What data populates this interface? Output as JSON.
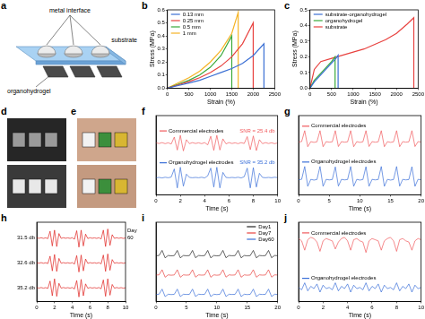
{
  "diagram": {
    "panel": "a",
    "labels": {
      "metal_interface": "metal interface",
      "substrate": "substrate",
      "organohydrogel": "organohydrogel"
    }
  },
  "photos": [
    {
      "panel": "d"
    },
    {
      "panel": "e"
    }
  ],
  "chart_data": [
    {
      "panel": "b",
      "type": "line",
      "x_label": "Strain (%)",
      "y_label": "Stress (MPa)",
      "xlim": [
        0,
        2500
      ],
      "xticks": [
        0,
        500,
        1000,
        1500,
        2000,
        2500
      ],
      "ylim": [
        0,
        0.6
      ],
      "yticks": [
        {
          "value": 0,
          "label": "0.0"
        },
        0.1,
        0.2,
        0.3,
        0.4,
        0.5,
        0.6
      ],
      "grid": false,
      "legend": "upper left",
      "series": [
        {
          "name": "0.13 mm",
          "color": "#3b6fd4",
          "x": [
            0,
            250,
            500,
            750,
            1000,
            1250,
            1500,
            1750,
            2000,
            2250,
            2250
          ],
          "values": [
            0,
            0.02,
            0.04,
            0.06,
            0.09,
            0.12,
            0.15,
            0.19,
            0.25,
            0.34,
            0
          ]
        },
        {
          "name": "0.25 mm",
          "color": "#e8423f",
          "x": [
            0,
            250,
            500,
            750,
            1000,
            1250,
            1500,
            1750,
            2000,
            2000
          ],
          "values": [
            0,
            0.025,
            0.05,
            0.08,
            0.12,
            0.17,
            0.24,
            0.34,
            0.5,
            0
          ]
        },
        {
          "name": "0.5 mm",
          "color": "#3aa93a",
          "x": [
            0,
            250,
            500,
            750,
            1000,
            1250,
            1500,
            1500
          ],
          "values": [
            0,
            0.03,
            0.06,
            0.1,
            0.16,
            0.25,
            0.4,
            0
          ]
        },
        {
          "name": "1 mm",
          "color": "#f5b324",
          "x": [
            0,
            250,
            500,
            750,
            1000,
            1250,
            1500,
            1650,
            1650
          ],
          "values": [
            0,
            0.04,
            0.08,
            0.13,
            0.2,
            0.29,
            0.42,
            0.58,
            0
          ]
        }
      ]
    },
    {
      "panel": "c",
      "type": "line",
      "x_label": "Strain (%)",
      "y_label": "Stress (MPa)",
      "xlim": [
        0,
        2500
      ],
      "xticks": [
        0,
        500,
        1000,
        1500,
        2000,
        2500
      ],
      "ylim": [
        0,
        0.5
      ],
      "yticks": [
        {
          "value": 0,
          "label": "0.0"
        },
        0.1,
        0.2,
        0.3,
        0.4,
        0.5
      ],
      "grid": false,
      "legend": "upper left",
      "series": [
        {
          "name": "substrate-organohydrogel",
          "color": "#3b6fd4",
          "x": [
            0,
            100,
            200,
            300,
            400,
            500,
            600,
            650,
            650
          ],
          "values": [
            0,
            0.04,
            0.07,
            0.1,
            0.13,
            0.16,
            0.19,
            0.21,
            0
          ]
        },
        {
          "name": "organohydrogel",
          "color": "#3aa93a",
          "x": [
            0,
            100,
            200,
            300,
            400,
            500,
            580,
            580
          ],
          "values": [
            0,
            0.05,
            0.08,
            0.11,
            0.14,
            0.17,
            0.2,
            0
          ]
        },
        {
          "name": "substrate",
          "color": "#e8423f",
          "x": [
            0,
            100,
            250,
            500,
            750,
            1000,
            1250,
            1500,
            1750,
            2000,
            2250,
            2400,
            2400
          ],
          "values": [
            0,
            0.12,
            0.17,
            0.19,
            0.21,
            0.23,
            0.25,
            0.28,
            0.31,
            0.35,
            0.41,
            0.45,
            0
          ]
        }
      ]
    },
    {
      "panel": "f",
      "type": "line",
      "x_label": "Time (s)",
      "xlim": [
        0,
        10
      ],
      "xticks": [
        0,
        2,
        4,
        6,
        8,
        10
      ],
      "ylim": [
        -2,
        2.6
      ],
      "yticks": [],
      "tick_labels": "x",
      "grid": false,
      "legend": "inline",
      "x": [
        0,
        0.25,
        0.5,
        0.75,
        1,
        1.25,
        1.5,
        1.75,
        2,
        2.25,
        2.5,
        2.75,
        3,
        3.25,
        3.5,
        3.75,
        4,
        4.25,
        4.5,
        4.75,
        5,
        5.25,
        5.5,
        5.75,
        6,
        6.25,
        6.5,
        6.75,
        7,
        7.25,
        7.5,
        7.75,
        8,
        8.25,
        8.5,
        8.75,
        9,
        9.25,
        9.5,
        9.75,
        10
      ],
      "series": [
        {
          "name": "Commercial electrodes",
          "color": "#f0595c",
          "annotation": "SNR = 25.4 db",
          "values": [
            1.02,
            0.98,
            1.03,
            0.97,
            1.02,
            0.95,
            1.35,
            0.6,
            1.45,
            0.55,
            1.2,
            0.97,
            1.03,
            0.98,
            1.02,
            0.97,
            1.03,
            0.9,
            1.4,
            0.58,
            1.45,
            0.6,
            1.25,
            0.96,
            1.03,
            0.98,
            1.02,
            0.97,
            1.03,
            0.98,
            1.38,
            0.62,
            1.42,
            0.57,
            1.2,
            0.97,
            1.03,
            0.98,
            1.02,
            0.97,
            1.01
          ]
        },
        {
          "name": "Organohydrogel electrodes",
          "color": "#3a6fd8",
          "annotation": "SNR = 35.2 db",
          "values": [
            -1.01,
            -0.99,
            -1.02,
            -0.98,
            -1.01,
            -0.97,
            -0.5,
            -1.6,
            -0.4,
            -1.5,
            -0.8,
            -0.99,
            -1.01,
            -0.99,
            -1.01,
            -0.98,
            -1.02,
            -0.9,
            -0.45,
            -1.55,
            -0.4,
            -1.6,
            -0.7,
            -0.99,
            -1.01,
            -0.99,
            -1.01,
            -0.98,
            -1.02,
            -0.95,
            -0.45,
            -1.6,
            -0.42,
            -1.55,
            -0.75,
            -0.99,
            -1.01,
            -0.99,
            -1.01,
            -0.98,
            -1.0
          ]
        }
      ]
    },
    {
      "panel": "g",
      "type": "line",
      "x_label": "Time (s)",
      "xlim": [
        0,
        20
      ],
      "xticks": [
        0,
        5,
        10,
        15,
        20
      ],
      "ylim": [
        -1.8,
        2.4
      ],
      "yticks": [],
      "tick_labels": "x",
      "grid": false,
      "legend": "inline",
      "x": [
        0,
        0.5,
        1,
        1.5,
        2,
        2.5,
        3,
        3.5,
        4,
        4.5,
        5,
        5.5,
        6,
        6.5,
        7,
        7.5,
        8,
        8.5,
        9,
        9.5,
        10,
        10.5,
        11,
        11.5,
        12,
        12.5,
        13,
        13.5,
        14,
        14.5,
        15,
        15.5,
        16,
        16.5,
        17,
        17.5,
        18,
        18.5,
        19,
        19.5,
        20
      ],
      "series": [
        {
          "name": "Commercial electrodes",
          "color": "#f0595c",
          "values": [
            1.0,
            1.02,
            1.6,
            0.75,
            1.02,
            0.98,
            1.01,
            1.6,
            0.75,
            1.02,
            0.99,
            1.01,
            1.6,
            0.76,
            1.02,
            0.99,
            1.01,
            1.6,
            0.75,
            1.02,
            0.98,
            1.01,
            1.6,
            0.76,
            1.02,
            0.99,
            1.01,
            1.6,
            0.75,
            1.02,
            0.98,
            1.01,
            1.6,
            0.75,
            1.02,
            0.99,
            1.01,
            1.6,
            0.76,
            1.02,
            1.0
          ]
        },
        {
          "name": "Organohydrogel electrodes",
          "color": "#3a6fd8",
          "values": [
            -1.0,
            -0.98,
            -0.3,
            -1.35,
            -0.98,
            -1.02,
            -0.99,
            -0.3,
            -1.35,
            -0.98,
            -1.01,
            -0.99,
            -0.32,
            -1.34,
            -0.98,
            -1.01,
            -0.99,
            -0.3,
            -1.35,
            -0.98,
            -1.02,
            -0.99,
            -0.31,
            -1.35,
            -0.98,
            -1.01,
            -0.99,
            -0.3,
            -1.35,
            -0.98,
            -1.02,
            -0.99,
            -0.3,
            -1.34,
            -0.98,
            -1.01,
            -0.99,
            -0.31,
            -1.35,
            -0.98,
            -1.0
          ]
        }
      ]
    },
    {
      "panel": "h",
      "type": "line",
      "x_label": "Time (s)",
      "xlim": [
        0,
        10
      ],
      "xticks": [
        0,
        2,
        4,
        6,
        8,
        10
      ],
      "ylim": [
        -1.2,
        5.8
      ],
      "yticks": [],
      "tick_labels": "x",
      "grid": false,
      "legend": "left",
      "depth_label": "Day",
      "x": [
        0,
        0.25,
        0.5,
        0.75,
        1,
        1.25,
        1.5,
        1.75,
        2,
        2.25,
        2.5,
        2.75,
        3,
        3.25,
        3.5,
        3.75,
        4,
        4.25,
        4.5,
        4.75,
        5,
        5.25,
        5.5,
        5.75,
        6,
        6.25,
        6.5,
        6.75,
        7,
        7.25,
        7.5,
        7.75,
        8,
        8.25,
        8.5,
        8.75,
        9,
        9.25,
        9.5,
        9.75,
        10
      ],
      "series": [
        {
          "name": "31.5 db",
          "color": "#e0201c",
          "day": 60,
          "values": [
            4.42,
            4.38,
            4.43,
            4.37,
            4.42,
            4.35,
            5.0,
            3.7,
            5.1,
            3.65,
            4.8,
            4.37,
            4.43,
            4.38,
            4.42,
            4.37,
            4.43,
            4.3,
            5.05,
            3.6,
            5.1,
            3.7,
            4.75,
            4.36,
            4.43,
            4.38,
            4.42,
            4.37,
            4.43,
            4.32,
            5.1,
            3.65,
            5.2,
            3.75,
            4.7,
            4.37,
            4.43,
            4.38,
            4.42,
            4.37,
            4.41
          ]
        },
        {
          "name": "32.6 db",
          "color": "#e0201c",
          "values": [
            2.22,
            2.18,
            2.23,
            2.17,
            2.22,
            2.15,
            2.8,
            1.5,
            2.95,
            1.45,
            2.6,
            2.17,
            2.23,
            2.18,
            2.22,
            2.17,
            2.23,
            2.1,
            2.85,
            1.4,
            2.9,
            1.5,
            2.55,
            2.16,
            2.23,
            2.18,
            2.22,
            2.17,
            2.23,
            2.12,
            2.9,
            1.45,
            3.0,
            1.55,
            2.5,
            2.17,
            2.23,
            2.18,
            2.22,
            2.17,
            2.21
          ]
        },
        {
          "name": "35.2 db",
          "color": "#e0201c",
          "values": [
            0.02,
            -0.02,
            0.03,
            -0.03,
            0.02,
            -0.05,
            0.6,
            -0.7,
            0.8,
            -0.75,
            0.4,
            -0.03,
            0.03,
            -0.02,
            0.02,
            -0.03,
            0.03,
            -0.1,
            0.65,
            -0.8,
            0.75,
            -0.7,
            0.35,
            -0.04,
            0.03,
            -0.02,
            0.02,
            -0.03,
            0.03,
            -0.08,
            0.7,
            -0.75,
            0.8,
            -0.65,
            0.3,
            -0.03,
            0.03,
            -0.02,
            0.02,
            -0.03,
            0.01
          ]
        }
      ]
    },
    {
      "panel": "i",
      "type": "line",
      "x_label": "Time (s)",
      "xlim": [
        0,
        20
      ],
      "xticks": [
        0,
        5,
        10,
        15,
        20
      ],
      "ylim": [
        -3,
        6
      ],
      "yticks": [],
      "tick_labels": "x",
      "grid": false,
      "legend": "upper right",
      "x": [
        0,
        0.5,
        1,
        1.5,
        2,
        2.5,
        3,
        3.5,
        4,
        4.5,
        5,
        5.5,
        6,
        6.5,
        7,
        7.5,
        8,
        8.5,
        9,
        9.5,
        10,
        10.5,
        11,
        11.5,
        12,
        12.5,
        13,
        13.5,
        14,
        14.5,
        15,
        15.5,
        16,
        16.5,
        17,
        17.5,
        18,
        18.5,
        19,
        19.5,
        20
      ],
      "series": [
        {
          "name": "Day1",
          "color": "#222222",
          "values": [
            2.2,
            2.22,
            2.8,
            1.95,
            2.22,
            2.18,
            2.21,
            2.8,
            1.95,
            2.22,
            2.19,
            2.21,
            2.8,
            1.96,
            2.22,
            2.19,
            2.21,
            2.8,
            1.95,
            2.22,
            2.18,
            2.21,
            2.8,
            1.96,
            2.22,
            2.19,
            2.21,
            2.8,
            1.95,
            2.22,
            2.18,
            2.21,
            2.8,
            1.95,
            2.22,
            2.19,
            2.21,
            2.8,
            1.96,
            2.22,
            2.2
          ]
        },
        {
          "name": "Day7",
          "color": "#e8423f",
          "values": [
            0.0,
            0.02,
            0.6,
            -0.25,
            0.02,
            -0.02,
            0.01,
            0.6,
            -0.25,
            0.02,
            -0.01,
            0.01,
            0.6,
            -0.24,
            0.02,
            -0.01,
            0.01,
            0.6,
            -0.25,
            0.02,
            -0.02,
            0.01,
            0.6,
            -0.24,
            0.02,
            -0.01,
            0.01,
            0.6,
            -0.25,
            0.02,
            -0.02,
            0.01,
            0.6,
            -0.25,
            0.02,
            -0.01,
            0.01,
            0.6,
            -0.24,
            0.02,
            0.0
          ]
        },
        {
          "name": "Day60",
          "color": "#3a6fd8",
          "values": [
            -2.2,
            -2.18,
            -1.6,
            -2.45,
            -2.18,
            -2.22,
            -2.19,
            -1.6,
            -2.45,
            -2.18,
            -2.21,
            -2.19,
            -1.6,
            -2.44,
            -2.18,
            -2.21,
            -2.19,
            -1.6,
            -2.45,
            -2.18,
            -2.22,
            -2.19,
            -1.6,
            -2.44,
            -2.18,
            -2.21,
            -2.19,
            -1.6,
            -2.45,
            -2.18,
            -2.22,
            -2.19,
            -1.6,
            -2.45,
            -2.18,
            -2.21,
            -2.19,
            -1.6,
            -2.44,
            -2.18,
            -2.2
          ]
        }
      ]
    },
    {
      "panel": "j",
      "type": "line",
      "x_label": "Time (s)",
      "xlim": [
        0,
        10
      ],
      "xticks": [
        0,
        2,
        4,
        6,
        8,
        10
      ],
      "ylim": [
        -1.6,
        1.8
      ],
      "yticks": [],
      "tick_labels": "x",
      "grid": false,
      "legend": "inline",
      "x": [
        0,
        0.25,
        0.5,
        0.75,
        1,
        1.25,
        1.5,
        1.75,
        2,
        2.25,
        2.5,
        2.75,
        3,
        3.25,
        3.5,
        3.75,
        4,
        4.25,
        4.5,
        4.75,
        5,
        5.25,
        5.5,
        5.75,
        6,
        6.25,
        6.5,
        6.75,
        7,
        7.25,
        7.5,
        7.75,
        8,
        8.25,
        8.5,
        8.75,
        9,
        9.25,
        9.5,
        9.75,
        10
      ],
      "series": [
        {
          "name": "Commercial electrodes",
          "color": "#f0595c",
          "values": [
            1.1,
            1.0,
            0.6,
            1.05,
            1.15,
            1.1,
            0.95,
            0.55,
            1.0,
            1.1,
            1.05,
            1.0,
            0.65,
            0.95,
            1.1,
            1.15,
            1.0,
            0.6,
            1.05,
            1.1,
            1.0,
            0.95,
            0.5,
            1.0,
            1.1,
            1.05,
            1.0,
            0.6,
            1.0,
            1.1,
            1.15,
            1.0,
            0.55,
            1.05,
            1.1,
            1.0,
            0.95,
            0.6,
            1.0,
            1.1,
            1.05
          ]
        },
        {
          "name": "Organohydrogel electrodes",
          "color": "#3a6fd8",
          "values": [
            -1.0,
            -1.1,
            -0.8,
            -1.15,
            -0.95,
            -1.05,
            -0.85,
            -1.2,
            -0.9,
            -1.05,
            -1.0,
            -1.1,
            -0.8,
            -1.15,
            -0.95,
            -1.05,
            -0.85,
            -1.2,
            -0.9,
            -1.05,
            -1.0,
            -1.1,
            -0.8,
            -1.15,
            -0.95,
            -1.05,
            -0.85,
            -1.2,
            -0.9,
            -1.05,
            -1.0,
            -1.1,
            -0.8,
            -1.15,
            -0.95,
            -1.05,
            -0.85,
            -1.2,
            -0.9,
            -1.05,
            -1.0
          ]
        }
      ]
    }
  ]
}
